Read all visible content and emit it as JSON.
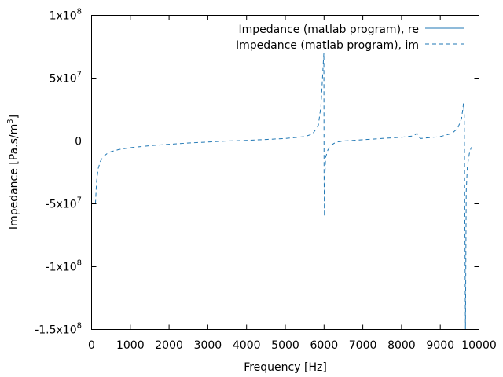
{
  "chart_data": {
    "type": "line",
    "xlabel": "Frequency [Hz]",
    "ylabel": "Impedance [Pa.s/m",
    "ylabel_superscript": "3",
    "ylabel_suffix": "]",
    "xlim": [
      0,
      10000
    ],
    "ylim": [
      -150000000,
      100000000
    ],
    "grid": false,
    "legend_placement": "top-right",
    "x_ticks": [
      {
        "value": 0,
        "label": "0"
      },
      {
        "value": 1000,
        "label": "1000"
      },
      {
        "value": 2000,
        "label": "2000"
      },
      {
        "value": 3000,
        "label": "3000"
      },
      {
        "value": 4000,
        "label": "4000"
      },
      {
        "value": 5000,
        "label": "5000"
      },
      {
        "value": 6000,
        "label": "6000"
      },
      {
        "value": 7000,
        "label": "7000"
      },
      {
        "value": 8000,
        "label": "8000"
      },
      {
        "value": 9000,
        "label": "9000"
      },
      {
        "value": 10000,
        "label": "10000"
      }
    ],
    "y_ticks": [
      {
        "value": 100000000,
        "mantissa": "1x10",
        "exponent": "8"
      },
      {
        "value": 50000000,
        "mantissa": "5x10",
        "exponent": "7"
      },
      {
        "value": 0,
        "mantissa": "0",
        "exponent": ""
      },
      {
        "value": -50000000,
        "mantissa": "-5x10",
        "exponent": "7"
      },
      {
        "value": -100000000,
        "mantissa": "-1x10",
        "exponent": "8"
      },
      {
        "value": -150000000,
        "mantissa": "-1.5x10",
        "exponent": "8"
      }
    ],
    "series": [
      {
        "name": "Impedance (matlab program), re",
        "color": "#1f77b4",
        "style": "solid",
        "x": [
          100,
          1000,
          2000,
          3000,
          4000,
          5000,
          6000,
          7000,
          8000,
          9000,
          9700
        ],
        "y": [
          0,
          0,
          0,
          0,
          0,
          0,
          0,
          0,
          0,
          0,
          0
        ]
      },
      {
        "name": "Impedance (matlab program), im",
        "color": "#1f77b4",
        "style": "dashed",
        "x": [
          100,
          130,
          170,
          230,
          300,
          400,
          500,
          700,
          1000,
          1500,
          2000,
          2500,
          3000,
          3500,
          4000,
          4500,
          5000,
          5500,
          5700,
          5850,
          5920,
          5960,
          5980,
          5995,
          6000,
          6010,
          6020,
          6040,
          6100,
          6200,
          6300,
          6500,
          7000,
          7500,
          8000,
          8300,
          8400,
          8450,
          8500,
          9000,
          9300,
          9450,
          9550,
          9600,
          9620,
          9630,
          9640,
          9645,
          9650,
          9670,
          9700,
          9750,
          9800
        ],
        "y": [
          -50000000,
          -32000000,
          -22000000,
          -16000000,
          -12500000,
          -10000000,
          -8500000,
          -6800000,
          -5300000,
          -3700000,
          -2600000,
          -1600000,
          -800000,
          0,
          500000,
          1200000,
          2000000,
          3500000,
          5500000,
          12000000,
          28000000,
          50000000,
          62000000,
          70000000,
          -25000000,
          -60000000,
          -28000000,
          -13000000,
          -7000000,
          -3000000,
          -1000000,
          0,
          1000000,
          2000000,
          3000000,
          4000000,
          6000000,
          3000000,
          2000000,
          3500000,
          6000000,
          10000000,
          18000000,
          30000000,
          20000000,
          -40000000,
          -90000000,
          -125000000,
          -150000000,
          -40000000,
          -20000000,
          -10000000,
          -5000000
        ]
      }
    ]
  }
}
